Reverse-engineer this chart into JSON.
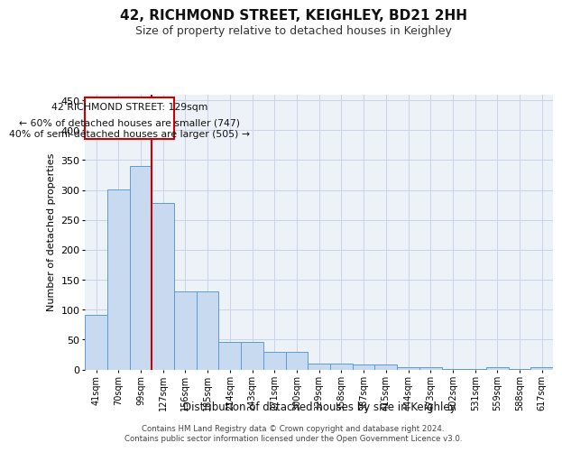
{
  "title": "42, RICHMOND STREET, KEIGHLEY, BD21 2HH",
  "subtitle": "Size of property relative to detached houses in Keighley",
  "xlabel": "Distribution of detached houses by size in Keighley",
  "ylabel": "Number of detached properties",
  "categories": [
    "41sqm",
    "70sqm",
    "99sqm",
    "127sqm",
    "156sqm",
    "185sqm",
    "214sqm",
    "243sqm",
    "271sqm",
    "300sqm",
    "329sqm",
    "358sqm",
    "387sqm",
    "415sqm",
    "444sqm",
    "473sqm",
    "502sqm",
    "531sqm",
    "559sqm",
    "588sqm",
    "617sqm"
  ],
  "values": [
    92,
    301,
    340,
    278,
    131,
    130,
    46,
    46,
    30,
    30,
    10,
    10,
    8,
    8,
    4,
    4,
    1,
    1,
    4,
    1,
    4
  ],
  "bar_color": "#c8daf0",
  "bar_edge_color": "#5b9bd5",
  "grid_color": "#c8d4e8",
  "background_color": "#edf2f9",
  "vline_x": 2.5,
  "vline_color": "#cc0000",
  "annotation_line1": "42 RICHMOND STREET: 129sqm",
  "annotation_line2": "← 60% of detached houses are smaller (747)",
  "annotation_line3": "40% of semi-detached houses are larger (505) →",
  "annotation_box_color": "#cc0000",
  "footer_line1": "Contains HM Land Registry data © Crown copyright and database right 2024.",
  "footer_line2": "Contains public sector information licensed under the Open Government Licence v3.0.",
  "ylim": [
    0,
    460
  ],
  "yticks": [
    0,
    50,
    100,
    150,
    200,
    250,
    300,
    350,
    400,
    450
  ]
}
